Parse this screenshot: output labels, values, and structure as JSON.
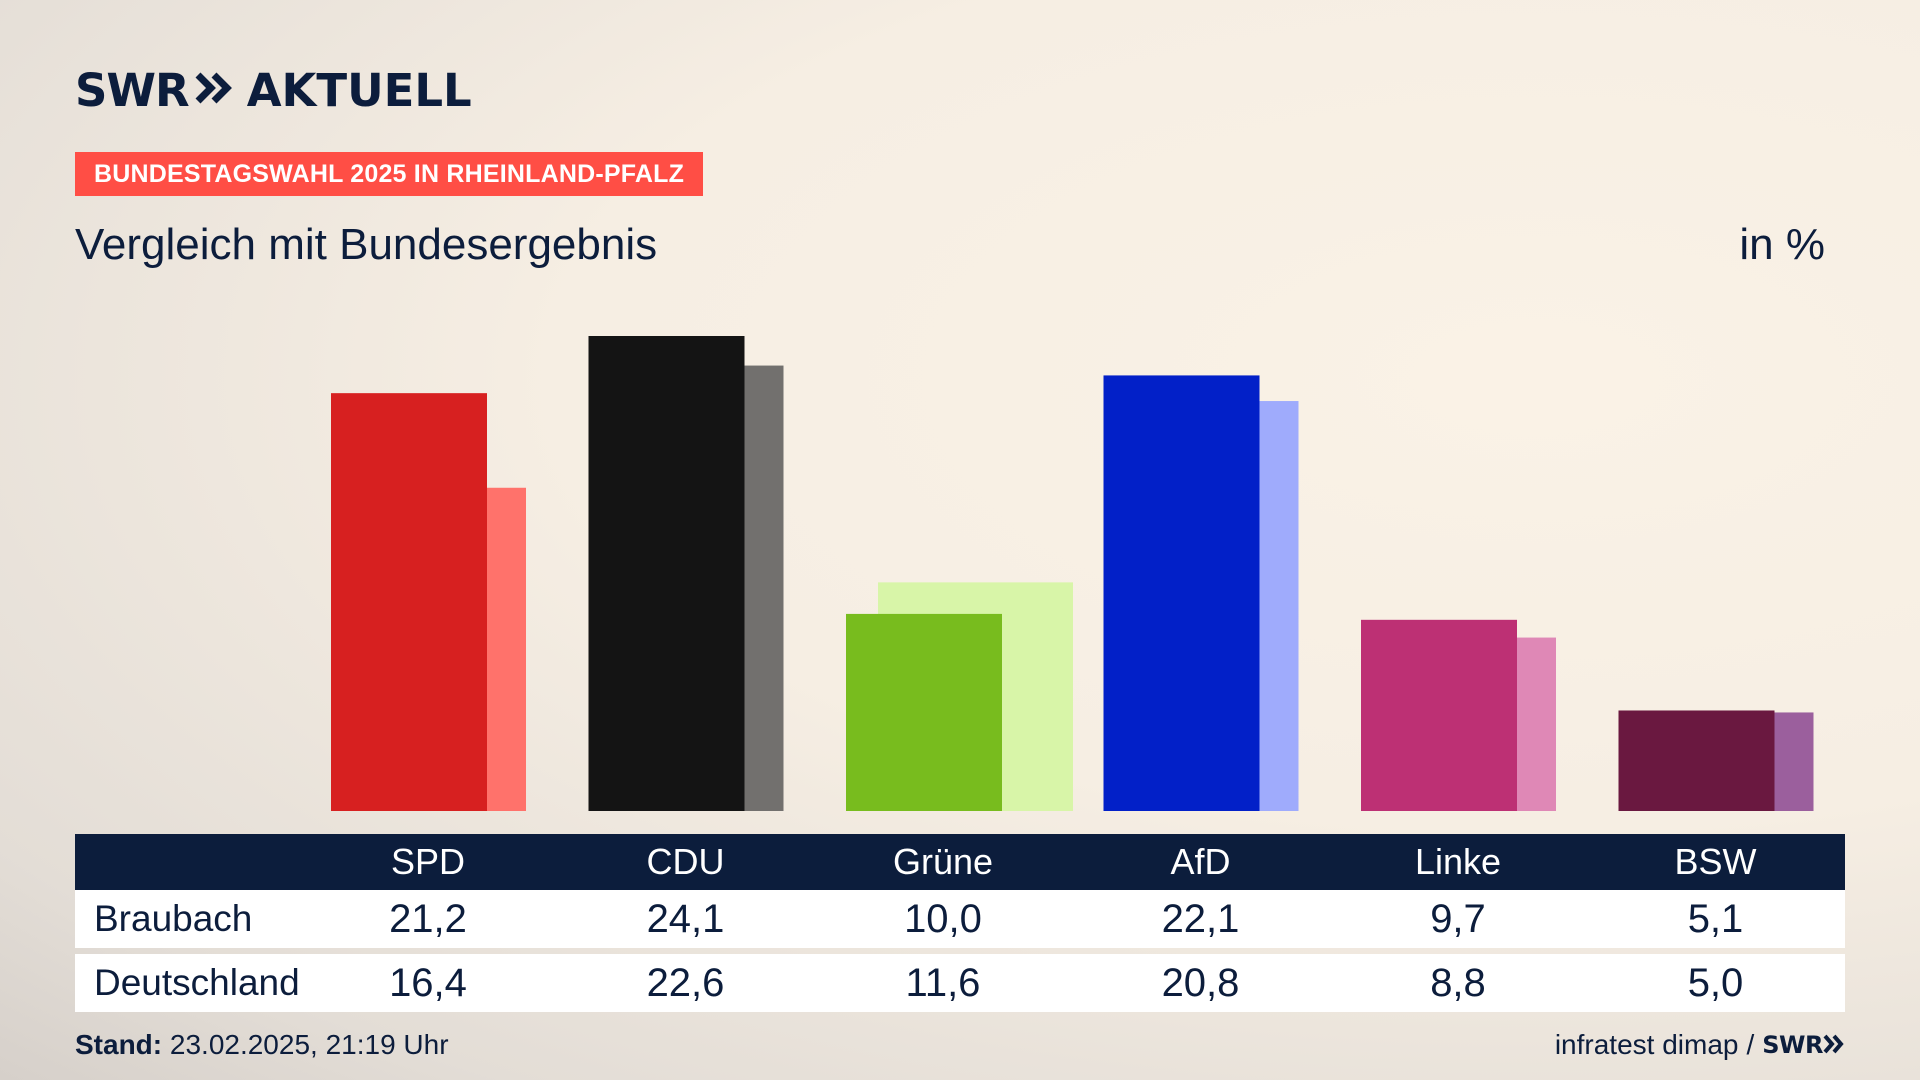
{
  "brand": {
    "logo_primary": "SWR",
    "logo_secondary": "AKTUELL",
    "footer_logo": "SWR"
  },
  "topic_badge": "BUNDESTAGSWAHL 2025 IN RHEINLAND-PFALZ",
  "title": "Vergleich mit Bundesergebnis",
  "unit": "in %",
  "table": {
    "row_labels": [
      "Braubach",
      "Deutschland"
    ]
  },
  "footer": {
    "stand_label": "Stand:",
    "stand_value": "23.02.2025, 21:19 Uhr",
    "source": "infratest dimap",
    "separator": "/"
  },
  "colors": {
    "navy": "#0c1d3c",
    "badge": "#ff4e45",
    "parties_primary": [
      "#d72020",
      "#141414",
      "#78bc1e",
      "#0220c8",
      "#bd3074",
      "#6a1840"
    ],
    "parties_secondary": [
      "#ff726b",
      "#72706e",
      "#d8f5a8",
      "#9fabfc",
      "#df88b6",
      "#9b5f9d"
    ]
  },
  "chart_data": {
    "type": "bar",
    "title": "Vergleich mit Bundesergebnis",
    "ylabel": "in %",
    "xlabel": "",
    "categories": [
      "SPD",
      "CDU",
      "Grüne",
      "AfD",
      "Linke",
      "BSW"
    ],
    "series": [
      {
        "name": "Braubach",
        "values": [
          21.2,
          24.1,
          10.0,
          22.1,
          9.7,
          5.1
        ]
      },
      {
        "name": "Deutschland",
        "values": [
          16.4,
          22.6,
          11.6,
          20.8,
          8.8,
          5.0
        ]
      }
    ],
    "value_labels": {
      "Braubach": [
        "21,2",
        "24,1",
        "10,0",
        "22,1",
        "9,7",
        "5,1"
      ],
      "Deutschland": [
        "16,4",
        "22,6",
        "11,6",
        "20,8",
        "8,8",
        "5,0"
      ]
    },
    "ylim": [
      0,
      24.1
    ],
    "grid": false,
    "legend": "table-below"
  }
}
